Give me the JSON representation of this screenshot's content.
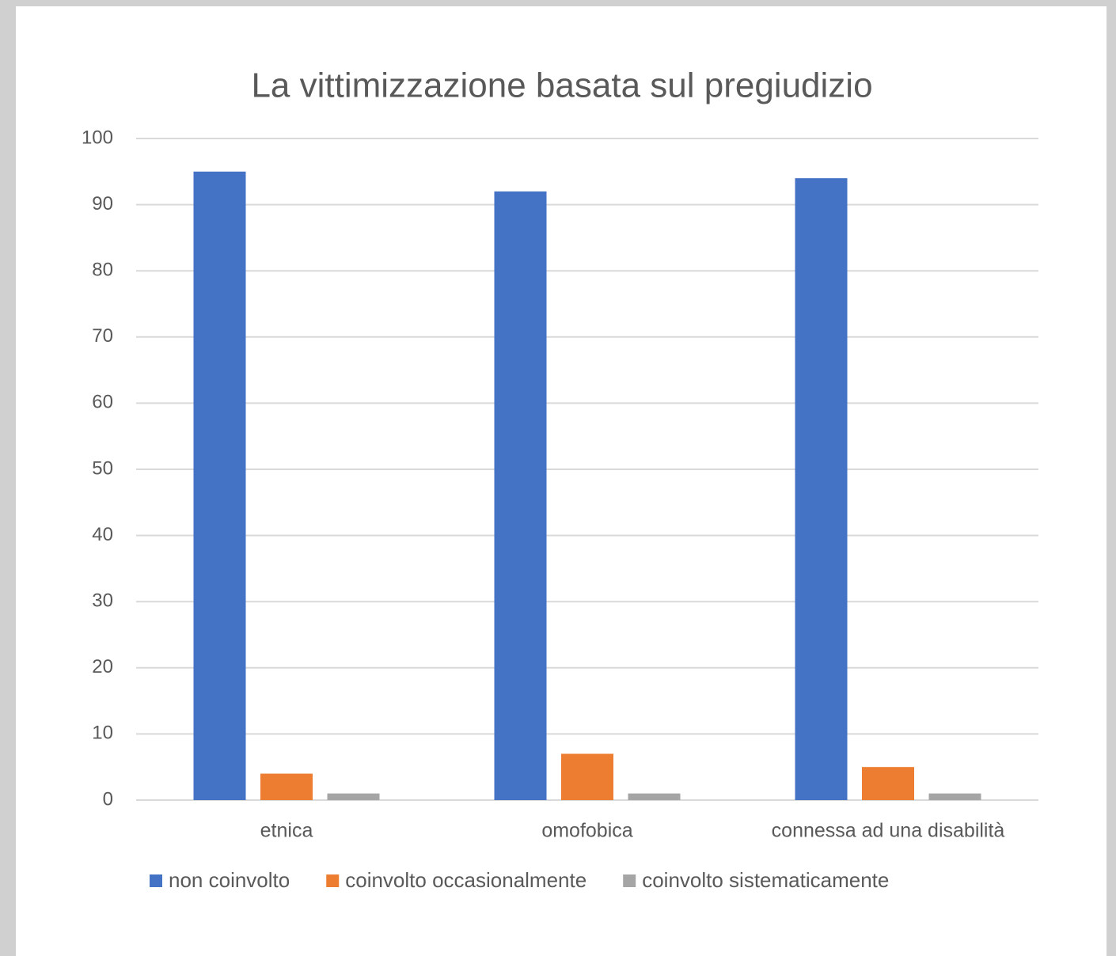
{
  "chart_data": {
    "type": "bar",
    "title": "La vittimizzazione basata sul pregiudizio",
    "categories": [
      "etnica",
      "omofobica",
      "connessa ad una disabilità"
    ],
    "series": [
      {
        "name": "non coinvolto",
        "color": "#4472c4",
        "values": [
          95,
          92,
          94
        ]
      },
      {
        "name": "coinvolto occasionalmente",
        "color": "#ed7d31",
        "values": [
          4,
          7,
          5
        ]
      },
      {
        "name": "coinvolto sistematicamente",
        "color": "#a5a5a5",
        "values": [
          1,
          1,
          1
        ]
      }
    ],
    "ylim": [
      0,
      100
    ],
    "yticks": [
      0,
      10,
      20,
      30,
      40,
      50,
      60,
      70,
      80,
      90,
      100
    ],
    "grid": true,
    "legend": "bottom"
  }
}
